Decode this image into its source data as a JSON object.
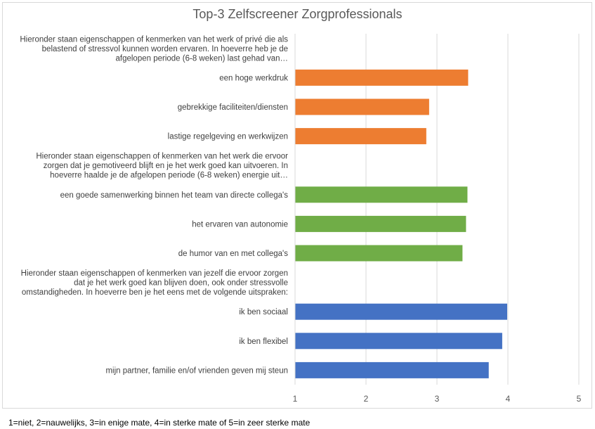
{
  "chart_data": {
    "type": "bar",
    "orientation": "horizontal",
    "title": "Top-3 Zelfscreener Zorgprofessionals",
    "xlim": [
      1,
      5
    ],
    "xticks": [
      "1",
      "2",
      "3",
      "4",
      "5"
    ],
    "grid": true,
    "legend": "none",
    "groups": [
      {
        "heading": [
          "Hieronder staan eigenschappen of kenmerken van het werk of privé die als",
          "belastend of stressvol kunnen worden ervaren. In hoeverre heb je de",
          "afgelopen periode (6-8 weken) last gehad van…"
        ],
        "color": "#ED7D31",
        "categories": [
          "een hoge werkdruk",
          "gebrekkige faciliteiten/diensten",
          "lastige regelgeving en werkwijzen"
        ],
        "values": [
          3.44,
          2.89,
          2.85
        ]
      },
      {
        "heading": [
          "Hieronder staan eigenschappen of kenmerken van het werk die ervoor",
          "zorgen dat je gemotiveerd blijft en je het werk goed kan uitvoeren. In",
          "hoeverre haalde je de afgelopen periode (6-8 weken) energie uit…"
        ],
        "color": "#70AD47",
        "categories": [
          "een goede samenwerking binnen het team van directe collega's",
          "het ervaren van autonomie",
          "de humor van en met collega's"
        ],
        "values": [
          3.43,
          3.41,
          3.36
        ]
      },
      {
        "heading": [
          "Hieronder staan eigenschappen of kenmerken van jezelf die ervoor zorgen",
          "dat je het werk goed kan blijven doen, ook onder stressvolle",
          "omstandigheden. In hoeverre ben je het eens met de volgende uitspraken:"
        ],
        "color": "#4472C4",
        "categories": [
          "ik ben sociaal",
          "ik ben flexibel",
          "mijn partner, familie en/of vrienden geven mij steun"
        ],
        "values": [
          3.99,
          3.92,
          3.73
        ]
      }
    ],
    "footnote": "1=niet, 2=nauwelijks, 3=in enige mate, 4=in sterke mate of 5=in zeer sterke mate"
  }
}
